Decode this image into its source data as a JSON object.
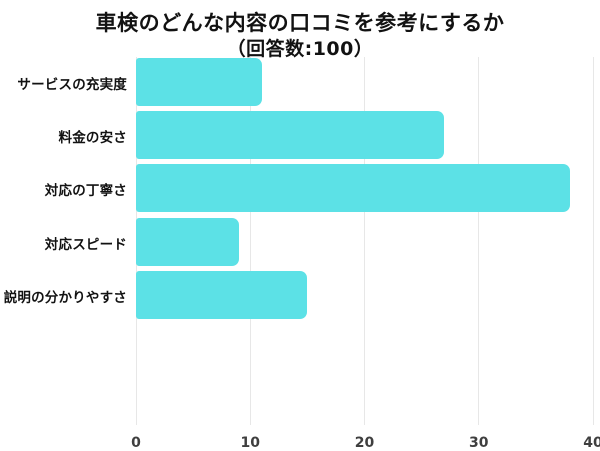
{
  "title": {
    "line1": "車検のどんな内容の口コミを参考にするか",
    "line2": "（回答数:100）"
  },
  "colors": {
    "bar": "#5CE1E6",
    "grid": "#E7E7E7",
    "tick_label": "#3F3F3F",
    "title_text": "#121212",
    "category_label": "#121212",
    "background": "#FFFFFF"
  },
  "chart_data": {
    "type": "bar",
    "orientation": "horizontal",
    "title": "車検のどんな内容の口コミを参考にするか（回答数:100）",
    "response_count": 100,
    "categories": [
      "サービスの充実度",
      "料金の安さ",
      "対応の丁寧さ",
      "対応スピード",
      "説明の分かりやすさ"
    ],
    "values": [
      11,
      27,
      38,
      9,
      15
    ],
    "xlabel": "",
    "ylabel": "",
    "xlim": [
      0,
      40
    ],
    "xticks": [
      0,
      10,
      20,
      30,
      40
    ],
    "grid": true,
    "legend": false
  }
}
